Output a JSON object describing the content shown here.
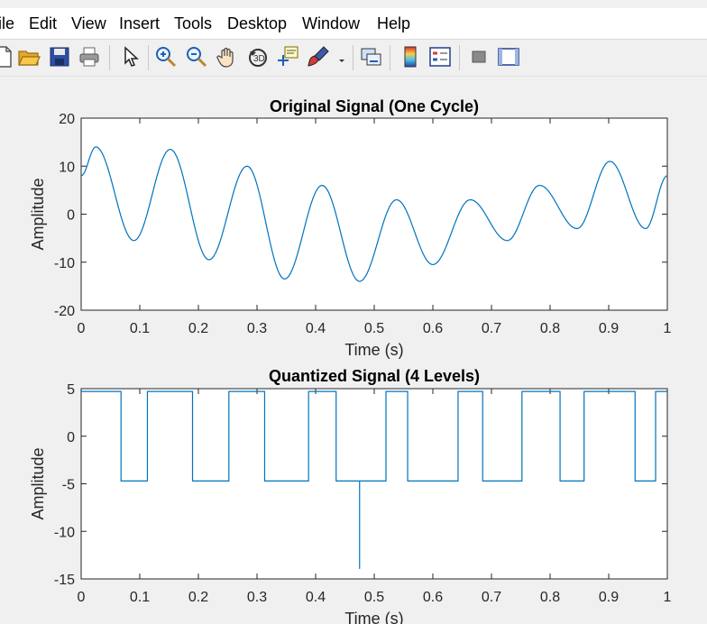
{
  "menubar": {
    "items": [
      {
        "id": "file",
        "label": "ile"
      },
      {
        "id": "edit",
        "label": "Edit"
      },
      {
        "id": "view",
        "label": "View"
      },
      {
        "id": "insert",
        "label": "Insert"
      },
      {
        "id": "tools",
        "label": "Tools"
      },
      {
        "id": "desktop",
        "label": "Desktop"
      },
      {
        "id": "window",
        "label": "Window"
      },
      {
        "id": "help",
        "label": "Help"
      }
    ]
  },
  "toolbar": {
    "icons": [
      "new-figure-icon",
      "open-folder-icon",
      "save-icon",
      "print-icon",
      "pointer-icon",
      "zoom-in-icon",
      "zoom-out-icon",
      "pan-hand-icon",
      "rotate-3d-icon",
      "data-cursor-icon",
      "brush-icon",
      "brush-dropdown-icon",
      "link-plot-icon",
      "colorbar-icon",
      "legend-icon",
      "hide-plot-tools-icon",
      "show-plot-tools-icon"
    ]
  },
  "colors": {
    "line": "#0072bd",
    "axes": "#262626",
    "background": "#f0f0f0",
    "plot_bg": "#ffffff"
  },
  "chart_data": [
    {
      "type": "line",
      "title": "Original Signal (One Cycle)",
      "xlabel": "Time (s)",
      "ylabel": "Amplitude",
      "xlim": [
        0,
        1
      ],
      "ylim": [
        -20,
        20
      ],
      "xticks": [
        0,
        0.1,
        0.2,
        0.3,
        0.4,
        0.5,
        0.6,
        0.7,
        0.8,
        0.9,
        1
      ],
      "xtick_labels": [
        "0",
        "0.1",
        "0.2",
        "0.3",
        "0.4",
        "0.5",
        "0.6",
        "0.7",
        "0.8",
        "0.9",
        "1"
      ],
      "yticks": [
        20,
        10,
        0,
        -10,
        -20
      ],
      "ytick_labels": [
        "20",
        "10",
        "0",
        "-10",
        "-20"
      ],
      "grid": false,
      "series": [
        {
          "x": [
            0,
            0.025,
            0.09,
            0.152,
            0.218,
            0.283,
            0.347,
            0.411,
            0.475,
            0.538,
            0.6,
            0.664,
            0.727,
            0.782,
            0.846,
            0.902,
            0.963,
            1
          ],
          "y": [
            8,
            14,
            -5.5,
            13.5,
            -9.5,
            10,
            -13.5,
            6,
            -14,
            3,
            -10.5,
            3,
            -5.5,
            6,
            -3,
            11,
            -3,
            8
          ]
        }
      ]
    },
    {
      "type": "line",
      "title": "Quantized Signal (4 Levels)",
      "xlabel": "Time (s)",
      "ylabel": "Amplitude",
      "xlim": [
        0,
        1
      ],
      "ylim": [
        -15,
        5
      ],
      "xticks": [
        0,
        0.1,
        0.2,
        0.3,
        0.4,
        0.5,
        0.6,
        0.7,
        0.8,
        0.9,
        1
      ],
      "xtick_labels": [
        "0",
        "0.1",
        "0.2",
        "0.3",
        "0.4",
        "0.5",
        "0.6",
        "0.7",
        "0.8",
        "0.9",
        "1"
      ],
      "yticks": [
        5,
        0,
        -5,
        -10,
        -15
      ],
      "ytick_labels": [
        "5",
        "0",
        "-5",
        "-10",
        "-15"
      ],
      "grid": false,
      "series": [
        {
          "x": [
            0,
            0.068,
            0.068,
            0.113,
            0.113,
            0.19,
            0.19,
            0.252,
            0.252,
            0.313,
            0.313,
            0.388,
            0.388,
            0.435,
            0.435,
            0.475,
            0.475,
            0.475,
            0.52,
            0.52,
            0.557,
            0.557,
            0.643,
            0.643,
            0.685,
            0.685,
            0.752,
            0.752,
            0.817,
            0.817,
            0.858,
            0.858,
            0.945,
            0.945,
            0.98,
            0.98,
            1
          ],
          "y": [
            4.7,
            4.7,
            -4.7,
            -4.7,
            4.7,
            4.7,
            -4.7,
            -4.7,
            4.7,
            4.7,
            -4.7,
            -4.7,
            4.7,
            4.7,
            -4.7,
            -4.7,
            -13.9,
            -4.7,
            -4.7,
            4.7,
            4.7,
            -4.7,
            -4.7,
            4.7,
            4.7,
            -4.7,
            -4.7,
            4.7,
            4.7,
            -4.7,
            -4.7,
            4.7,
            4.7,
            -4.7,
            -4.7,
            4.7,
            4.7
          ]
        }
      ]
    }
  ]
}
